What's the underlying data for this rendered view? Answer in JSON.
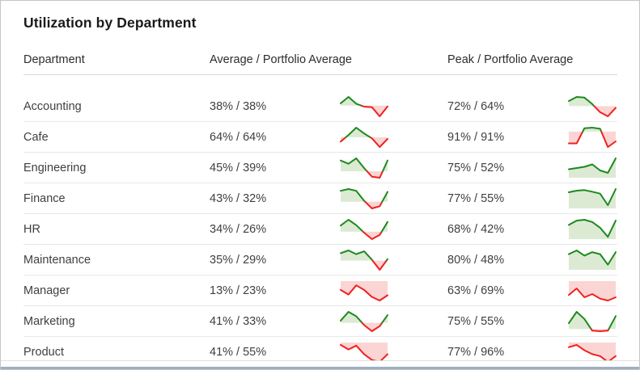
{
  "panel": {
    "title": "Utilization by Department"
  },
  "table": {
    "columns": [
      "Department",
      "Average / Portfolio Average",
      "Peak / Portfolio Average"
    ],
    "rows": [
      {
        "department": "Accounting",
        "avg": "38% / 38%",
        "peak": "72% / 64%",
        "avg_spark": [
          0.12,
          0.45,
          0.1,
          -0.05,
          -0.08,
          -0.55,
          -0.04
        ],
        "peak_spark": [
          0.25,
          0.45,
          0.42,
          0.1,
          -0.3,
          -0.5,
          -0.08
        ]
      },
      {
        "department": "Cafe",
        "avg": "64% / 64%",
        "peak": "91% / 91%",
        "avg_spark": [
          -0.22,
          0.12,
          0.5,
          0.2,
          -0.05,
          -0.5,
          -0.08
        ],
        "peak_spark": [
          -0.42,
          -0.42,
          0.12,
          0.14,
          0.1,
          -0.55,
          -0.35
        ]
      },
      {
        "department": "Engineering",
        "avg": "45% / 39%",
        "peak": "75% / 52%",
        "avg_spark": [
          0.5,
          0.35,
          0.6,
          0.15,
          -0.25,
          -0.3,
          0.5
        ],
        "peak_spark": [
          0.35,
          0.4,
          0.45,
          0.55,
          0.3,
          0.2,
          0.8
        ]
      },
      {
        "department": "Finance",
        "avg": "43% / 32%",
        "peak": "77% / 55%",
        "avg_spark": [
          0.5,
          0.58,
          0.5,
          0.05,
          -0.3,
          -0.2,
          0.45
        ],
        "peak_spark": [
          0.6,
          0.66,
          0.68,
          0.62,
          0.55,
          0.12,
          0.72
        ]
      },
      {
        "department": "HR",
        "avg": "34% / 26%",
        "peak": "68% / 42%",
        "avg_spark": [
          0.28,
          0.55,
          0.3,
          -0.05,
          -0.35,
          -0.15,
          0.45
        ],
        "peak_spark": [
          0.5,
          0.65,
          0.68,
          0.6,
          0.4,
          0.08,
          0.65
        ]
      },
      {
        "department": "Maintenance",
        "avg": "35% / 29%",
        "peak": "80% / 48%",
        "avg_spark": [
          0.4,
          0.55,
          0.35,
          0.5,
          0.05,
          -0.5,
          0.08
        ],
        "peak_spark": [
          0.55,
          0.68,
          0.5,
          0.62,
          0.55,
          0.18,
          0.62
        ]
      },
      {
        "department": "Manager",
        "avg": "13% / 23%",
        "peak": "63% / 69%",
        "avg_spark": [
          -0.25,
          -0.38,
          -0.12,
          -0.25,
          -0.45,
          -0.55,
          -0.4
        ],
        "peak_spark": [
          -0.3,
          -0.16,
          -0.35,
          -0.28,
          -0.38,
          -0.42,
          -0.35
        ]
      },
      {
        "department": "Marketing",
        "avg": "41% / 33%",
        "peak": "75% / 55%",
        "avg_spark": [
          0.1,
          0.5,
          0.3,
          -0.1,
          -0.38,
          -0.15,
          0.35
        ],
        "peak_spark": [
          0.2,
          0.6,
          0.35,
          -0.06,
          -0.08,
          -0.06,
          0.45
        ]
      },
      {
        "department": "Product",
        "avg": "41% / 55%",
        "peak": "77% / 96%",
        "avg_spark": [
          -0.06,
          -0.18,
          -0.08,
          -0.3,
          -0.45,
          -0.5,
          -0.3
        ],
        "peak_spark": [
          -0.12,
          -0.06,
          -0.2,
          -0.3,
          -0.35,
          -0.5,
          -0.35
        ]
      }
    ]
  },
  "colors": {
    "line_up": "#1d8a1d",
    "line_down": "#ef2020",
    "fill_up": "#dcead4",
    "fill_down": "#fbd5d3"
  }
}
